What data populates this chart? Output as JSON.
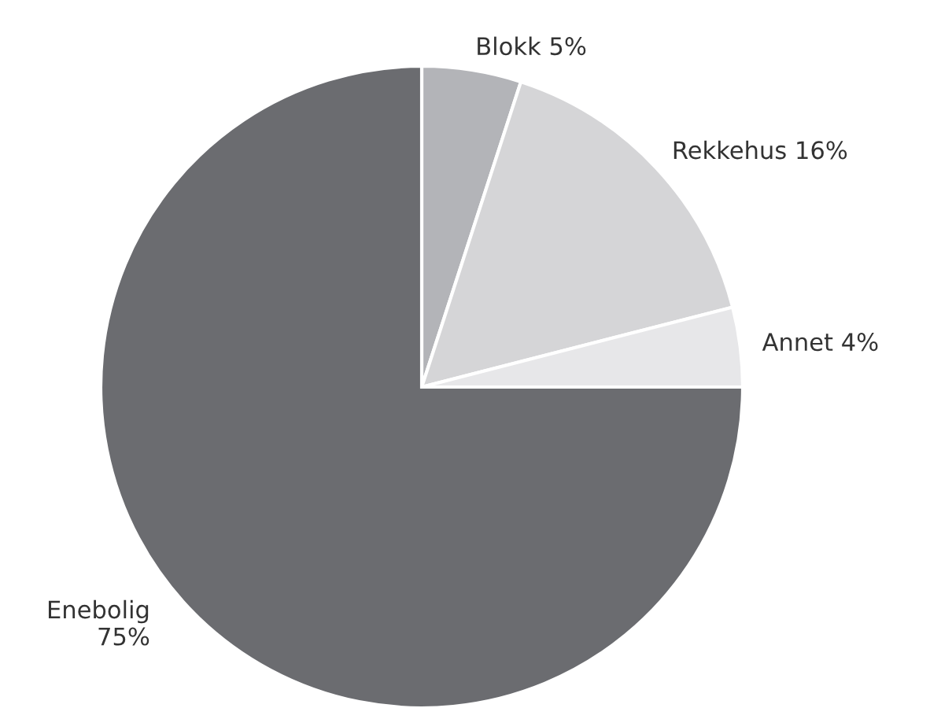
{
  "chart_data": {
    "type": "pie",
    "categories": [
      "Blokk",
      "Rekkehus",
      "Annet",
      "Enebolig"
    ],
    "values": [
      5,
      16,
      4,
      75
    ],
    "value_labels": [
      "5%",
      "16%",
      "4%",
      "75%"
    ],
    "colors": [
      "#b3b4b8",
      "#d5d5d7",
      "#e7e7e9",
      "#6b6c70"
    ]
  }
}
